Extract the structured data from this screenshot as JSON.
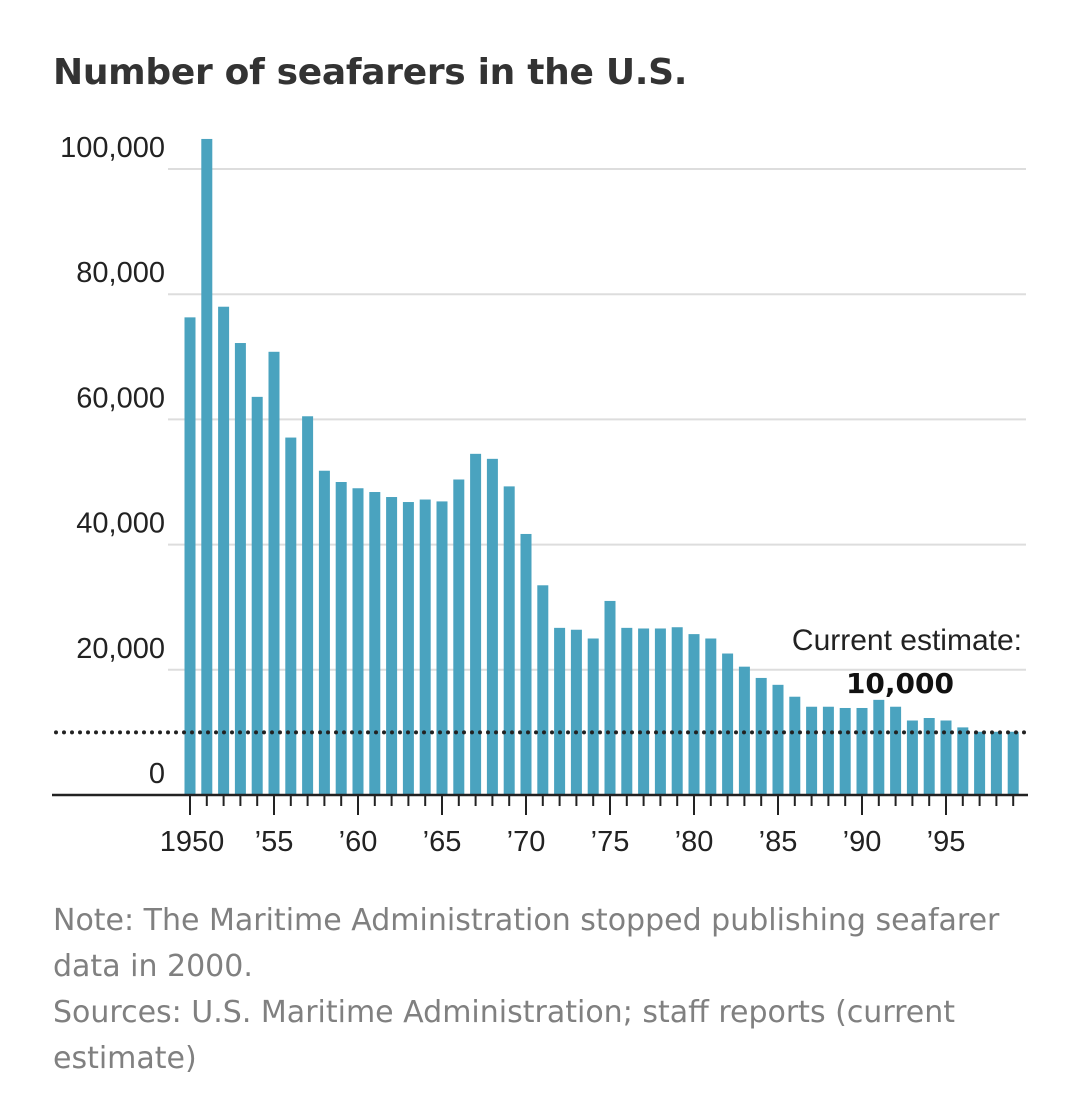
{
  "title": "Number of seafarers in the U.S.",
  "notes": {
    "note": "Note: The Maritime Administration stopped publishing seafarer data in 2000.",
    "sources": "Sources: U.S. Maritime Administration; staff reports (current estimate)"
  },
  "colors": {
    "bar": "#4aa3bf",
    "grid": "#dddddd",
    "axis": "#222222",
    "reference": "#222222"
  },
  "chart_data": {
    "type": "bar",
    "title": "Number of seafarers in the U.S.",
    "xlabel": "",
    "ylabel": "",
    "ylim": [
      0,
      100000
    ],
    "grid": true,
    "y_ticks": [
      {
        "value": 0,
        "label": "0"
      },
      {
        "value": 20000,
        "label": "20,000"
      },
      {
        "value": 40000,
        "label": "40,000"
      },
      {
        "value": 60000,
        "label": "60,000"
      },
      {
        "value": 80000,
        "label": "80,000"
      },
      {
        "value": 100000,
        "label": "100,000"
      }
    ],
    "x_ticks": [
      {
        "year": 1950,
        "label": "1950"
      },
      {
        "year": 1955,
        "label": "’55"
      },
      {
        "year": 1960,
        "label": "’60"
      },
      {
        "year": 1965,
        "label": "’65"
      },
      {
        "year": 1970,
        "label": "’70"
      },
      {
        "year": 1975,
        "label": "’75"
      },
      {
        "year": 1980,
        "label": "’80"
      },
      {
        "year": 1985,
        "label": "’85"
      },
      {
        "year": 1990,
        "label": "’90"
      },
      {
        "year": 1995,
        "label": "’95"
      }
    ],
    "categories": [
      1950,
      1951,
      1952,
      1953,
      1954,
      1955,
      1956,
      1957,
      1958,
      1959,
      1960,
      1961,
      1962,
      1963,
      1964,
      1965,
      1966,
      1967,
      1968,
      1969,
      1970,
      1971,
      1972,
      1973,
      1974,
      1975,
      1976,
      1977,
      1978,
      1979,
      1980,
      1981,
      1982,
      1983,
      1984,
      1985,
      1986,
      1987,
      1988,
      1989,
      1990,
      1991,
      1992,
      1993,
      1994,
      1995,
      1996,
      1997,
      1998,
      1999
    ],
    "series": [
      {
        "name": "Seafarers",
        "values": [
          76300,
          104800,
          78000,
          72200,
          63600,
          70800,
          57100,
          60500,
          51800,
          50000,
          49000,
          48400,
          47600,
          46800,
          47200,
          46900,
          50400,
          54500,
          53700,
          49300,
          41700,
          33500,
          26700,
          26400,
          25000,
          31000,
          26700,
          26600,
          26600,
          26800,
          25700,
          25000,
          22600,
          20500,
          18700,
          17600,
          15700,
          14100,
          14100,
          13900,
          13900,
          15200,
          14100,
          11900,
          12300,
          11900,
          10800,
          10100,
          10100,
          10100
        ]
      }
    ],
    "reference_line": {
      "value": 10000,
      "style": "dotted",
      "label": "Current estimate:",
      "value_label": "10,000"
    }
  }
}
